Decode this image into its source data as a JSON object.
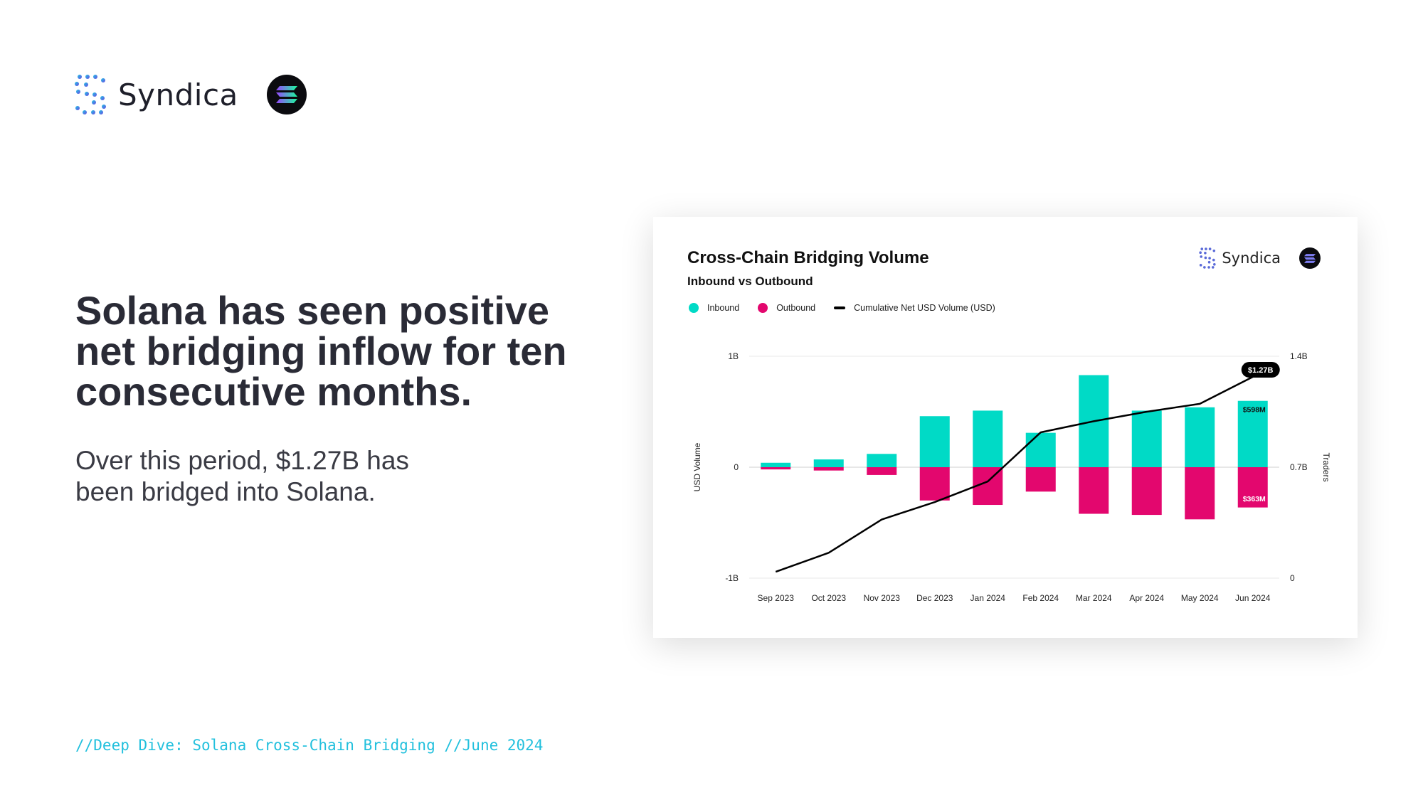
{
  "brand": {
    "name": "Syndica",
    "logo_icon": "syndica-dots-icon",
    "partner_icon": "solana-icon"
  },
  "headline": "Solana has seen positive net bridging inflow for ten consecutive months.",
  "subtext": "Over this period, $1.27B has been bridged into Solana.",
  "footer": "//Deep Dive: Solana Cross-Chain Bridging //June 2024",
  "colors": {
    "inbound": "#00dac6",
    "outbound": "#e3076e",
    "line": "#000000",
    "footer": "#22c0dd"
  },
  "chart_data": {
    "type": "bar",
    "title": "Cross-Chain Bridging Volume",
    "subtitle": "Inbound vs Outbound",
    "brand": "Syndica",
    "legend_placement": "top-left",
    "grid": true,
    "categories": [
      "Sep 2023",
      "Oct 2023",
      "Nov 2023",
      "Dec 2023",
      "Jan 2024",
      "Feb 2024",
      "Mar 2024",
      "Apr 2024",
      "May 2024",
      "Jun 2024"
    ],
    "series": [
      {
        "name": "Inbound",
        "axis": "left",
        "kind": "bar",
        "color": "#00dac6",
        "values": [
          0.04,
          0.07,
          0.12,
          0.46,
          0.51,
          0.31,
          0.83,
          0.51,
          0.54,
          0.598
        ]
      },
      {
        "name": "Outbound",
        "axis": "left",
        "kind": "bar",
        "color": "#e3076e",
        "values": [
          -0.02,
          -0.03,
          -0.07,
          -0.3,
          -0.34,
          -0.22,
          -0.42,
          -0.43,
          -0.47,
          -0.363
        ]
      },
      {
        "name": "Cumulative Net USD Volume (USD)",
        "axis": "right",
        "kind": "line",
        "color": "#000000",
        "values": [
          0.04,
          0.16,
          0.37,
          0.48,
          0.61,
          0.92,
          0.99,
          1.05,
          1.1,
          1.27
        ]
      }
    ],
    "left_axis": {
      "label": "USD Volume",
      "ylim": [
        -1,
        1
      ],
      "ticks": [
        1,
        0,
        -1
      ],
      "tick_labels": [
        "1B",
        "0",
        "-1B"
      ]
    },
    "right_axis": {
      "label": "Traders",
      "ylim": [
        0,
        1.4
      ],
      "ticks": [
        1.4,
        0.7,
        0
      ],
      "tick_labels": [
        "1.4B",
        "0.7B",
        "0"
      ]
    },
    "annotations": [
      {
        "series": "Cumulative Net USD Volume (USD)",
        "category": "Jun 2024",
        "text": "$1.27B"
      },
      {
        "series": "Inbound",
        "category": "Jun 2024",
        "text": "$598M"
      },
      {
        "series": "Outbound",
        "category": "Jun 2024",
        "text": "$363M"
      }
    ]
  }
}
